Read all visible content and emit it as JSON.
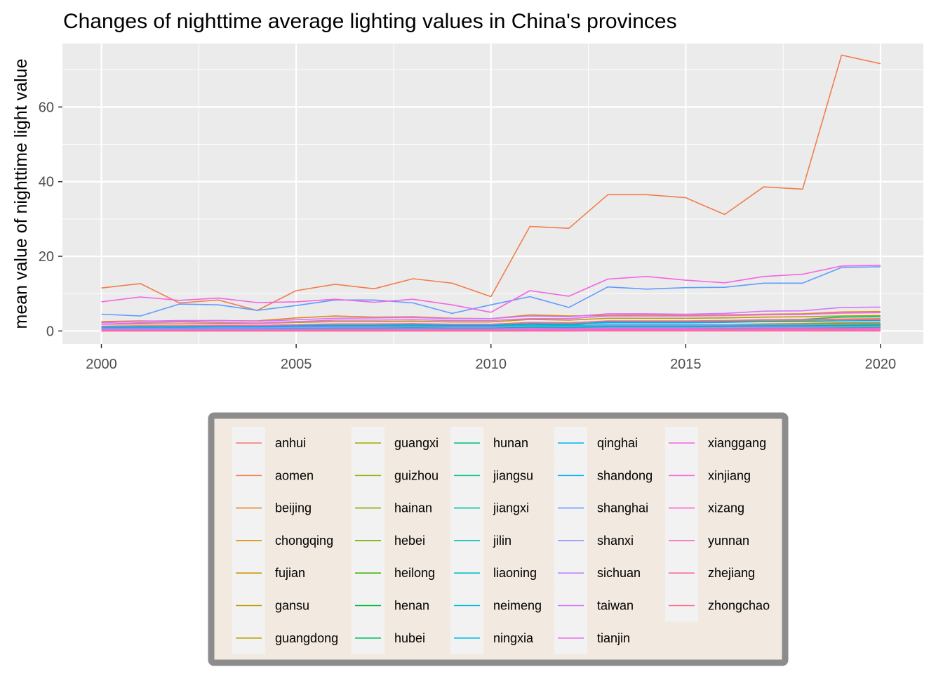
{
  "chart_data": {
    "type": "line",
    "title": "Changes of nighttime average lighting values in China's provinces",
    "xlabel": "",
    "ylabel": "mean value of nighttime light value",
    "x": [
      2000,
      2001,
      2002,
      2003,
      2004,
      2005,
      2006,
      2007,
      2008,
      2009,
      2010,
      2011,
      2012,
      2013,
      2014,
      2015,
      2016,
      2017,
      2018,
      2019,
      2020
    ],
    "xlim": [
      1999,
      2021.1
    ],
    "ylim": [
      -3.5,
      77
    ],
    "x_ticks": [
      2000,
      2005,
      2010,
      2015,
      2020
    ],
    "y_ticks": [
      0,
      20,
      40,
      60
    ],
    "x_tick_labels": [
      "2000",
      "2005",
      "2010",
      "2015",
      "2020"
    ],
    "y_tick_labels": [
      "0",
      "20",
      "40",
      "60"
    ],
    "grid": true,
    "legend_position": "bottom",
    "legend_columns": 5,
    "series": [
      {
        "name": "anhui",
        "color": "#F8766D",
        "values": [
          0.4,
          0.4,
          0.4,
          0.5,
          0.5,
          0.6,
          0.6,
          0.7,
          0.7,
          0.7,
          0.8,
          1.0,
          1.0,
          1.2,
          1.2,
          1.2,
          1.3,
          1.4,
          1.5,
          1.6,
          1.7
        ]
      },
      {
        "name": "aomen",
        "color": "#F17E4C",
        "values": [
          11.5,
          12.7,
          7.5,
          8.3,
          5.5,
          10.8,
          12.5,
          11.3,
          14.0,
          12.8,
          9.2,
          28.0,
          27.5,
          36.5,
          36.5,
          35.7,
          31.2,
          38.6,
          38.0,
          73.9,
          71.6
        ]
      },
      {
        "name": "beijing",
        "color": "#E7861B",
        "values": [
          2.5,
          2.7,
          2.6,
          2.8,
          2.7,
          3.5,
          4.0,
          3.7,
          3.8,
          3.4,
          3.3,
          4.3,
          4.0,
          4.2,
          4.3,
          4.2,
          4.3,
          4.5,
          4.6,
          5.1,
          5.2
        ]
      },
      {
        "name": "chongqing",
        "color": "#DB8E00",
        "values": [
          0.6,
          0.6,
          0.6,
          0.7,
          0.7,
          0.8,
          0.9,
          0.9,
          1.0,
          0.9,
          0.9,
          1.3,
          1.2,
          1.6,
          1.6,
          1.6,
          1.7,
          1.9,
          2.0,
          2.2,
          2.3
        ]
      },
      {
        "name": "fujian",
        "color": "#D09400",
        "values": [
          1.2,
          1.2,
          1.2,
          1.3,
          1.3,
          1.5,
          1.6,
          1.6,
          1.7,
          1.6,
          1.6,
          2.0,
          1.9,
          2.4,
          2.4,
          2.4,
          2.5,
          2.7,
          2.8,
          3.0,
          3.1
        ]
      },
      {
        "name": "gansu",
        "color": "#C49A00",
        "values": [
          0.2,
          0.2,
          0.2,
          0.2,
          0.2,
          0.3,
          0.3,
          0.3,
          0.3,
          0.3,
          0.3,
          0.4,
          0.4,
          0.5,
          0.5,
          0.5,
          0.5,
          0.6,
          0.6,
          0.6,
          0.7
        ]
      },
      {
        "name": "guangdong",
        "color": "#B7A000",
        "values": [
          1.8,
          1.9,
          1.9,
          2.0,
          2.0,
          2.3,
          2.5,
          2.5,
          2.6,
          2.4,
          2.4,
          3.1,
          2.9,
          3.4,
          3.4,
          3.4,
          3.5,
          3.7,
          3.8,
          4.0,
          4.1
        ]
      },
      {
        "name": "guangxi",
        "color": "#A7A600",
        "values": [
          0.3,
          0.3,
          0.3,
          0.4,
          0.4,
          0.4,
          0.5,
          0.5,
          0.5,
          0.5,
          0.5,
          0.7,
          0.6,
          0.8,
          0.8,
          0.8,
          0.9,
          1.0,
          1.0,
          1.1,
          1.2
        ]
      },
      {
        "name": "guizhou",
        "color": "#97AA00",
        "values": [
          0.2,
          0.2,
          0.2,
          0.2,
          0.2,
          0.3,
          0.3,
          0.3,
          0.3,
          0.3,
          0.3,
          0.4,
          0.4,
          0.6,
          0.6,
          0.6,
          0.7,
          0.8,
          0.8,
          0.9,
          1.0
        ]
      },
      {
        "name": "hainan",
        "color": "#82AE00",
        "values": [
          0.4,
          0.4,
          0.4,
          0.5,
          0.5,
          0.5,
          0.6,
          0.6,
          0.6,
          0.6,
          0.6,
          0.8,
          0.8,
          1.0,
          1.0,
          1.0,
          1.1,
          1.2,
          1.2,
          1.3,
          1.4
        ]
      },
      {
        "name": "hebei",
        "color": "#66B200",
        "values": [
          0.8,
          0.8,
          0.8,
          0.9,
          0.9,
          1.0,
          1.1,
          1.1,
          1.2,
          1.1,
          1.1,
          1.4,
          1.3,
          1.6,
          1.6,
          1.6,
          1.7,
          1.8,
          1.8,
          1.9,
          2.0
        ]
      },
      {
        "name": "heilong",
        "color": "#3EB700",
        "values": [
          0.3,
          0.3,
          0.3,
          0.3,
          0.3,
          0.4,
          0.4,
          0.4,
          0.4,
          0.4,
          0.4,
          0.5,
          0.5,
          0.6,
          0.6,
          0.6,
          0.6,
          0.7,
          0.7,
          0.7,
          0.8
        ]
      },
      {
        "name": "henan",
        "color": "#00BA38",
        "values": [
          0.6,
          0.6,
          0.6,
          0.7,
          0.7,
          0.8,
          0.9,
          0.9,
          1.0,
          0.9,
          0.9,
          1.2,
          1.1,
          1.4,
          1.4,
          1.4,
          1.5,
          1.6,
          1.6,
          1.7,
          1.8
        ]
      },
      {
        "name": "hubei",
        "color": "#00BC59",
        "values": [
          0.7,
          0.7,
          0.7,
          0.8,
          0.8,
          0.9,
          1.0,
          1.0,
          1.1,
          1.0,
          1.0,
          1.3,
          1.2,
          1.5,
          1.5,
          1.5,
          1.6,
          1.7,
          1.8,
          1.9,
          2.0
        ]
      },
      {
        "name": "hunan",
        "color": "#00BE72",
        "values": [
          0.5,
          0.5,
          0.5,
          0.6,
          0.6,
          0.7,
          0.7,
          0.7,
          0.8,
          0.7,
          0.7,
          1.0,
          0.9,
          1.2,
          1.2,
          1.2,
          1.3,
          1.4,
          1.4,
          1.5,
          1.6
        ]
      },
      {
        "name": "jiangsu",
        "color": "#00C08B",
        "values": [
          1.0,
          1.1,
          1.1,
          1.2,
          1.2,
          1.4,
          1.5,
          1.5,
          1.6,
          1.4,
          1.4,
          1.8,
          1.5,
          2.5,
          2.6,
          2.6,
          2.7,
          3.0,
          3.1,
          3.7,
          3.8
        ]
      },
      {
        "name": "jiangxi",
        "color": "#00C1A0",
        "values": [
          0.3,
          0.3,
          0.3,
          0.4,
          0.4,
          0.4,
          0.5,
          0.5,
          0.5,
          0.5,
          0.5,
          0.7,
          0.6,
          0.9,
          0.9,
          0.9,
          1.0,
          1.1,
          1.1,
          1.2,
          1.3
        ]
      },
      {
        "name": "jilin",
        "color": "#00C0B5",
        "values": [
          0.4,
          0.4,
          0.4,
          0.4,
          0.4,
          0.5,
          0.5,
          0.5,
          0.6,
          0.5,
          0.5,
          0.7,
          0.6,
          0.8,
          0.8,
          0.8,
          0.8,
          0.9,
          0.9,
          1.0,
          1.0
        ]
      },
      {
        "name": "liaoning",
        "color": "#00BFC4",
        "values": [
          0.9,
          0.9,
          0.9,
          1.0,
          1.0,
          1.1,
          1.2,
          1.2,
          1.3,
          1.2,
          1.2,
          1.5,
          1.4,
          1.7,
          1.7,
          1.7,
          1.7,
          1.8,
          1.8,
          1.9,
          2.0
        ]
      },
      {
        "name": "neimeng",
        "color": "#00BCD8",
        "values": [
          0.2,
          0.2,
          0.2,
          0.2,
          0.2,
          0.3,
          0.3,
          0.3,
          0.3,
          0.3,
          0.3,
          0.4,
          0.4,
          0.5,
          0.5,
          0.5,
          0.5,
          0.6,
          0.6,
          0.6,
          0.7
        ]
      },
      {
        "name": "ningxia",
        "color": "#00B8E7",
        "values": [
          0.4,
          0.4,
          0.4,
          0.5,
          0.5,
          0.6,
          0.6,
          0.6,
          0.7,
          0.6,
          0.6,
          0.8,
          0.8,
          1.0,
          1.0,
          1.0,
          1.0,
          1.1,
          1.1,
          1.2,
          1.3
        ]
      },
      {
        "name": "qinghai",
        "color": "#00B2F3",
        "values": [
          0.1,
          0.1,
          0.1,
          0.1,
          0.1,
          0.1,
          0.1,
          0.1,
          0.1,
          0.1,
          0.1,
          0.2,
          0.2,
          0.2,
          0.2,
          0.2,
          0.2,
          0.2,
          0.2,
          0.3,
          0.3
        ]
      },
      {
        "name": "shandong",
        "color": "#00A9FF",
        "values": [
          1.1,
          1.1,
          1.1,
          1.2,
          1.2,
          1.4,
          1.5,
          1.5,
          1.6,
          1.5,
          1.5,
          1.9,
          1.8,
          2.2,
          2.2,
          2.2,
          2.3,
          2.5,
          2.5,
          2.7,
          2.8
        ]
      },
      {
        "name": "shanghai",
        "color": "#619CFF",
        "values": [
          4.5,
          4.0,
          7.2,
          7.0,
          5.5,
          6.8,
          8.3,
          8.3,
          7.5,
          4.7,
          7.0,
          9.2,
          6.3,
          11.8,
          11.2,
          11.6,
          11.7,
          12.8,
          12.8,
          17.0,
          17.2
        ]
      },
      {
        "name": "shanxi",
        "color": "#9590FF",
        "values": [
          0.7,
          0.7,
          0.7,
          0.8,
          0.8,
          0.9,
          1.0,
          1.0,
          1.1,
          1.0,
          1.0,
          1.3,
          1.2,
          1.5,
          1.5,
          1.5,
          1.6,
          1.7,
          1.7,
          1.8,
          1.9
        ]
      },
      {
        "name": "sichuan",
        "color": "#B983FF",
        "values": [
          0.3,
          0.3,
          0.3,
          0.4,
          0.4,
          0.4,
          0.5,
          0.5,
          0.5,
          0.5,
          0.5,
          0.7,
          0.6,
          0.8,
          0.8,
          0.8,
          0.9,
          1.0,
          1.0,
          1.1,
          1.2
        ]
      },
      {
        "name": "taiwan",
        "color": "#D376FF",
        "values": [
          2.2,
          2.6,
          2.8,
          2.8,
          2.6,
          3.0,
          3.4,
          3.5,
          3.6,
          3.3,
          3.3,
          4.0,
          3.8,
          4.6,
          4.6,
          4.5,
          4.7,
          5.3,
          5.4,
          6.3,
          6.4
        ]
      },
      {
        "name": "tianjin",
        "color": "#E76BF3",
        "values": [
          1.8,
          2.2,
          2.4,
          2.3,
          2.1,
          2.5,
          2.9,
          2.9,
          3.0,
          2.8,
          2.8,
          3.3,
          3.3,
          4.0,
          4.0,
          4.0,
          4.1,
          4.3,
          4.4,
          4.8,
          4.9
        ]
      },
      {
        "name": "xianggang",
        "color": "#F564E3",
        "values": [
          7.8,
          9.1,
          8.2,
          8.8,
          7.6,
          7.8,
          8.5,
          7.7,
          8.5,
          7.0,
          5.0,
          10.8,
          9.3,
          13.9,
          14.6,
          13.6,
          12.9,
          14.6,
          15.2,
          17.4,
          17.6
        ]
      },
      {
        "name": "xinjiang",
        "color": "#FA62DB",
        "values": [
          0.1,
          0.1,
          0.1,
          0.1,
          0.1,
          0.2,
          0.2,
          0.2,
          0.2,
          0.2,
          0.2,
          0.2,
          0.2,
          0.3,
          0.3,
          0.3,
          0.3,
          0.3,
          0.3,
          0.4,
          0.4
        ]
      },
      {
        "name": "xizang",
        "color": "#FF61C9",
        "values": [
          0.0,
          0.0,
          0.0,
          0.0,
          0.0,
          0.0,
          0.0,
          0.0,
          0.0,
          0.0,
          0.0,
          0.0,
          0.0,
          0.1,
          0.1,
          0.1,
          0.1,
          0.1,
          0.1,
          0.1,
          0.1
        ]
      },
      {
        "name": "yunnan",
        "color": "#FF62BC",
        "values": [
          0.2,
          0.2,
          0.2,
          0.2,
          0.2,
          0.3,
          0.3,
          0.3,
          0.3,
          0.3,
          0.3,
          0.4,
          0.4,
          0.5,
          0.5,
          0.5,
          0.5,
          0.6,
          0.6,
          0.6,
          0.7
        ]
      },
      {
        "name": "zhejiang",
        "color": "#FF67A4",
        "values": [
          1.3,
          1.4,
          1.4,
          1.5,
          1.5,
          1.7,
          1.9,
          1.9,
          2.0,
          1.8,
          1.8,
          2.3,
          2.2,
          2.7,
          2.7,
          2.7,
          2.8,
          3.0,
          3.0,
          3.2,
          3.3
        ]
      },
      {
        "name": "zhongchao",
        "color": "#FF6C91",
        "values": [
          0.0,
          0.0,
          0.0,
          0.0,
          0.0,
          0.0,
          0.0,
          0.0,
          0.0,
          0.0,
          0.0,
          0.0,
          0.0,
          0.0,
          0.0,
          0.0,
          0.0,
          0.0,
          0.0,
          0.0,
          0.0
        ]
      }
    ]
  }
}
